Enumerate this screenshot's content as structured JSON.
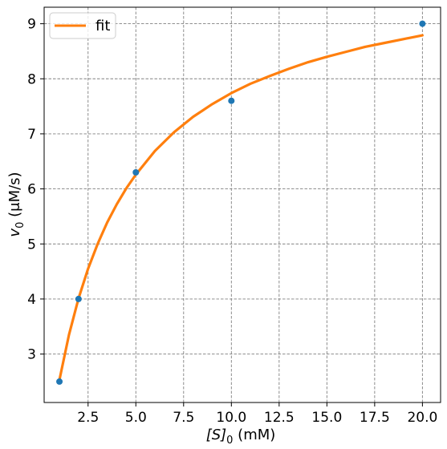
{
  "chart_data": {
    "type": "scatter",
    "xlabel_main": "[S]",
    "xlabel_sub": "0",
    "xlabel_tail": " (mM)",
    "ylabel_main": "v",
    "ylabel_sub": "0",
    "ylabel_tail": " (μM/s)",
    "xlim": [
      0.2,
      20.95
    ],
    "ylim": [
      2.12,
      9.3
    ],
    "x_ticks": [
      2.5,
      5.0,
      7.5,
      10.0,
      12.5,
      15.0,
      17.5,
      20.0
    ],
    "x_tick_labels": [
      "2.5",
      "5.0",
      "7.5",
      "10.0",
      "12.5",
      "15.0",
      "17.5",
      "20.0"
    ],
    "y_ticks": [
      3,
      4,
      5,
      6,
      7,
      8,
      9
    ],
    "y_tick_labels": [
      "3",
      "4",
      "5",
      "6",
      "7",
      "8",
      "9"
    ],
    "grid": true,
    "legend_position": "top-left",
    "points": {
      "x": [
        1,
        2,
        5,
        10,
        20
      ],
      "y": [
        2.5,
        4.0,
        6.3,
        7.6,
        9.0
      ],
      "color": "#1f77b4"
    },
    "fit": {
      "name": "fit",
      "color": "#ff7f0e",
      "x": [
        1.0,
        1.5,
        2.0,
        2.5,
        3.0,
        3.5,
        4.0,
        4.5,
        5.0,
        6.0,
        7.0,
        8.0,
        9.0,
        10.0,
        11.0,
        12.0,
        13.0,
        14.0,
        15.0,
        16.0,
        17.0,
        18.0,
        19.0,
        20.0
      ],
      "y": [
        2.53,
        3.35,
        4.01,
        4.55,
        5.0,
        5.39,
        5.72,
        6.01,
        6.26,
        6.69,
        7.03,
        7.31,
        7.54,
        7.74,
        7.91,
        8.05,
        8.18,
        8.3,
        8.4,
        8.49,
        8.58,
        8.65,
        8.72,
        8.79
      ]
    }
  }
}
